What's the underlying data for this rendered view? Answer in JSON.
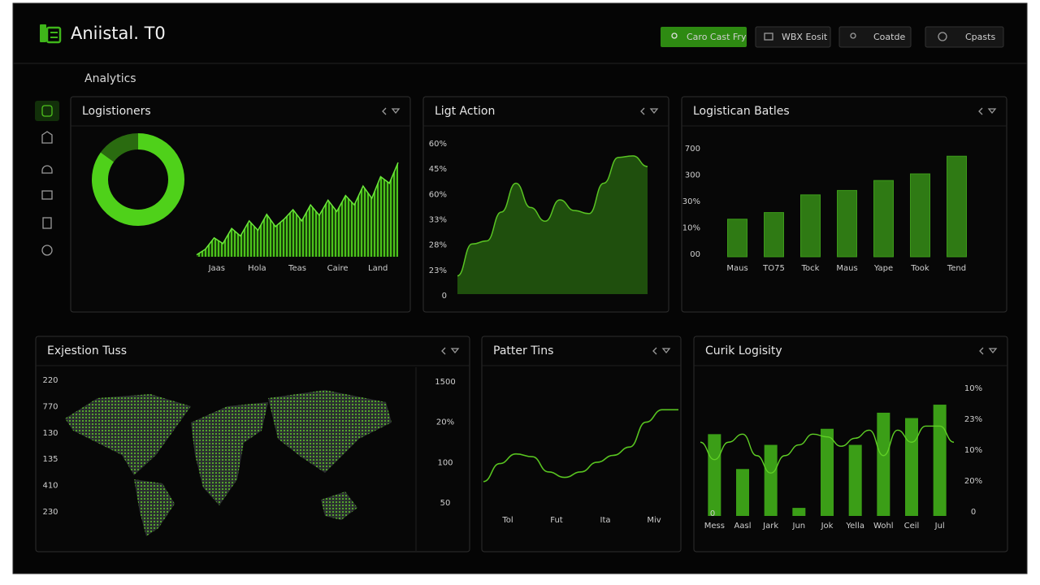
{
  "header": {
    "title": "Aniistal. T0",
    "buttons": [
      "Caro Cast Fry",
      "WBX Eosit",
      "Coatde",
      "Cpasts"
    ]
  },
  "page_label": "Analytics",
  "panels": [
    {
      "title": "Logistioners",
      "charts": [
        {
          "type": "donut",
          "values": [
            85,
            15
          ],
          "colors": [
            "#4fd11a",
            "#2a6b10"
          ]
        },
        {
          "type": "area",
          "categories": [
            "Jaas",
            "Hola",
            "Teas",
            "Caire",
            "Land"
          ],
          "values": [
            2,
            8,
            20,
            14,
            30,
            22,
            38,
            28,
            45,
            32,
            40,
            50,
            38,
            55,
            44,
            60,
            48,
            65,
            55,
            75,
            62,
            85,
            78,
            100
          ],
          "ylim": [
            0,
            100
          ],
          "color": "#3fae17"
        }
      ]
    },
    {
      "title": "Ligt Action",
      "charts": [
        {
          "type": "area",
          "y_labels": [
            "60%",
            "45%",
            "60%",
            "33%",
            "28%",
            "23%",
            "0"
          ],
          "values": [
            12,
            33,
            35,
            54,
            73,
            57,
            48,
            62,
            55,
            53,
            73,
            90,
            91,
            84
          ],
          "ylim": [
            0,
            100
          ],
          "color": "#1f4f0d"
        }
      ]
    },
    {
      "title": "Logistican Batles",
      "charts": [
        {
          "type": "bar",
          "y_labels": [
            "700",
            "300",
            "30%",
            "10%",
            "00"
          ],
          "categories": [
            "Maus",
            "TO75",
            "Tock",
            "Maus",
            "Yape",
            "Took",
            "Tend"
          ],
          "values": [
            34,
            40,
            56,
            60,
            69,
            75,
            91
          ],
          "ylim": [
            0,
            100
          ],
          "color": "#2f7a14"
        }
      ]
    },
    {
      "title": "Exjestion Tuss",
      "charts": [
        {
          "type": "map",
          "left_labels": [
            "220",
            "770",
            "130",
            "135",
            "410",
            "230"
          ],
          "right_labels": [
            "1500",
            "20%",
            "100",
            "50"
          ]
        }
      ]
    },
    {
      "title": "Patter Tins",
      "charts": [
        {
          "type": "line",
          "categories": [
            "Tol",
            "Fut",
            "Ita",
            "Miv"
          ],
          "values": [
            19,
            32,
            39,
            37,
            26,
            22,
            26,
            33,
            38,
            44,
            62,
            71,
            71
          ],
          "ylim": [
            0,
            100
          ],
          "color": "#58c420"
        }
      ]
    },
    {
      "title": "Curik Logisity",
      "charts": [
        {
          "type": "bar_line",
          "categories": [
            "Mess",
            "Aasl",
            "Jark",
            "Jun",
            "Jok",
            "Yella",
            "Wohl",
            "Ceil",
            "Jul"
          ],
          "values": [
            61,
            35,
            53,
            6,
            65,
            53,
            77,
            73,
            83
          ],
          "line_values": [
            55,
            42,
            55,
            61,
            45,
            32,
            45,
            53,
            61,
            59,
            52,
            58,
            64,
            45,
            64,
            55,
            67,
            67,
            55
          ],
          "y_labels": [
            "10%",
            "23%",
            "10%",
            "20%",
            "0"
          ],
          "y_labels_left": [
            "0"
          ],
          "ylim": [
            0,
            100
          ],
          "color": "#3b9e17"
        }
      ]
    }
  ]
}
